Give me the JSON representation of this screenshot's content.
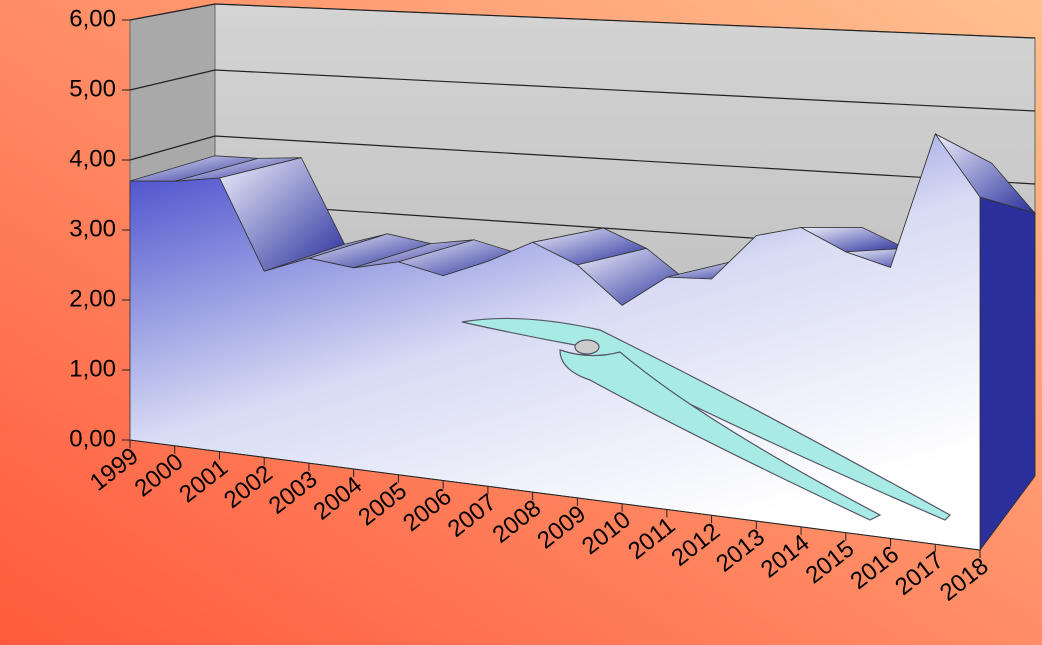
{
  "chart_data": {
    "type": "area3d",
    "categories": [
      "1999",
      "2000",
      "2001",
      "2002",
      "2003",
      "2004",
      "2005",
      "2006",
      "2007",
      "2008",
      "2009",
      "2010",
      "2011",
      "2012",
      "2013",
      "2014",
      "2015",
      "2016",
      "2017",
      "2018"
    ],
    "values": [
      3.7,
      3.7,
      3.75,
      2.5,
      2.7,
      2.6,
      2.7,
      2.55,
      2.75,
      3.0,
      2.75,
      2.3,
      2.65,
      2.65,
      3.15,
      3.25,
      3.0,
      2.85,
      4.25,
      3.6
    ],
    "ylim": [
      0,
      6
    ],
    "yticks": [
      {
        "value": 0,
        "label": "0,00"
      },
      {
        "value": 1,
        "label": "1,00"
      },
      {
        "value": 2,
        "label": "2,00"
      },
      {
        "value": 3,
        "label": "3,00"
      },
      {
        "value": 4,
        "label": "4,00"
      },
      {
        "value": 5,
        "label": "5,00"
      },
      {
        "value": 6,
        "label": "6,00"
      }
    ],
    "color": "#3a3fc0",
    "grid": true
  }
}
